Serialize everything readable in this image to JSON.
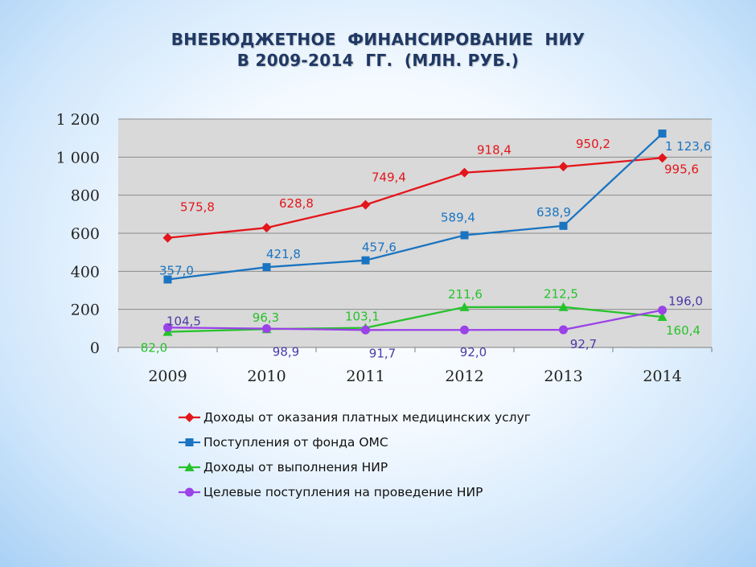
{
  "title": {
    "line1": "ВНЕБЮДЖЕТНОЕ  ФИНАНСИРОВАНИЕ  НИУ",
    "line2": "В 2009-2014  ГГ.  (МЛН. РУБ.)"
  },
  "chart_data": {
    "type": "line",
    "title": "ВНЕБЮДЖЕТНОЕ  ФИНАНСИРОВАНИЕ  НИУ В 2009-2014  ГГ.  (МЛН. РУБ.)",
    "categories": [
      "2009",
      "2010",
      "2011",
      "2012",
      "2013",
      "2014"
    ],
    "ylim": [
      0,
      1200
    ],
    "yticks": [
      0,
      200,
      400,
      600,
      800,
      1000,
      1200
    ],
    "ytick_labels": [
      "0",
      "200",
      "400",
      "600",
      "800",
      "1 000",
      "1 200"
    ],
    "grid": true,
    "legend_position": "bottom",
    "series": [
      {
        "name": "Доходы от оказания платных медицинских услуг",
        "color": "#e3161b",
        "marker": "diamond",
        "values": [
          575.8,
          628.8,
          749.4,
          918.4,
          950.2,
          995.6
        ],
        "labels": [
          "575,8",
          "628,8",
          "749,4",
          "918,4",
          "950,2",
          "995,6"
        ]
      },
      {
        "name": "Поступления от фонда ОМС",
        "color": "#1a74c1",
        "marker": "square",
        "values": [
          357.0,
          421.8,
          457.6,
          589.4,
          638.9,
          1123.6
        ],
        "labels": [
          "357,0",
          "421,8",
          "457,6",
          "589,4",
          "638,9",
          "1 123,6"
        ]
      },
      {
        "name": "Доходы от выполнения НИР",
        "color": "#27c22b",
        "marker": "triangle",
        "values": [
          82.0,
          96.3,
          103.1,
          211.6,
          212.5,
          160.4
        ],
        "labels": [
          "82,0",
          "96,3",
          "103,1",
          "211,6",
          "212,5",
          "160,4"
        ]
      },
      {
        "name": "Целевые поступления на проведение НИР",
        "color": "#9b42e8",
        "label_color": "#4c3aa8",
        "marker": "circle",
        "values": [
          104.5,
          98.9,
          91.7,
          92.0,
          92.7,
          196.0
        ],
        "labels": [
          "104,5",
          "98,9",
          "91,7",
          "92,0",
          "92,7",
          "196,0"
        ]
      }
    ]
  }
}
